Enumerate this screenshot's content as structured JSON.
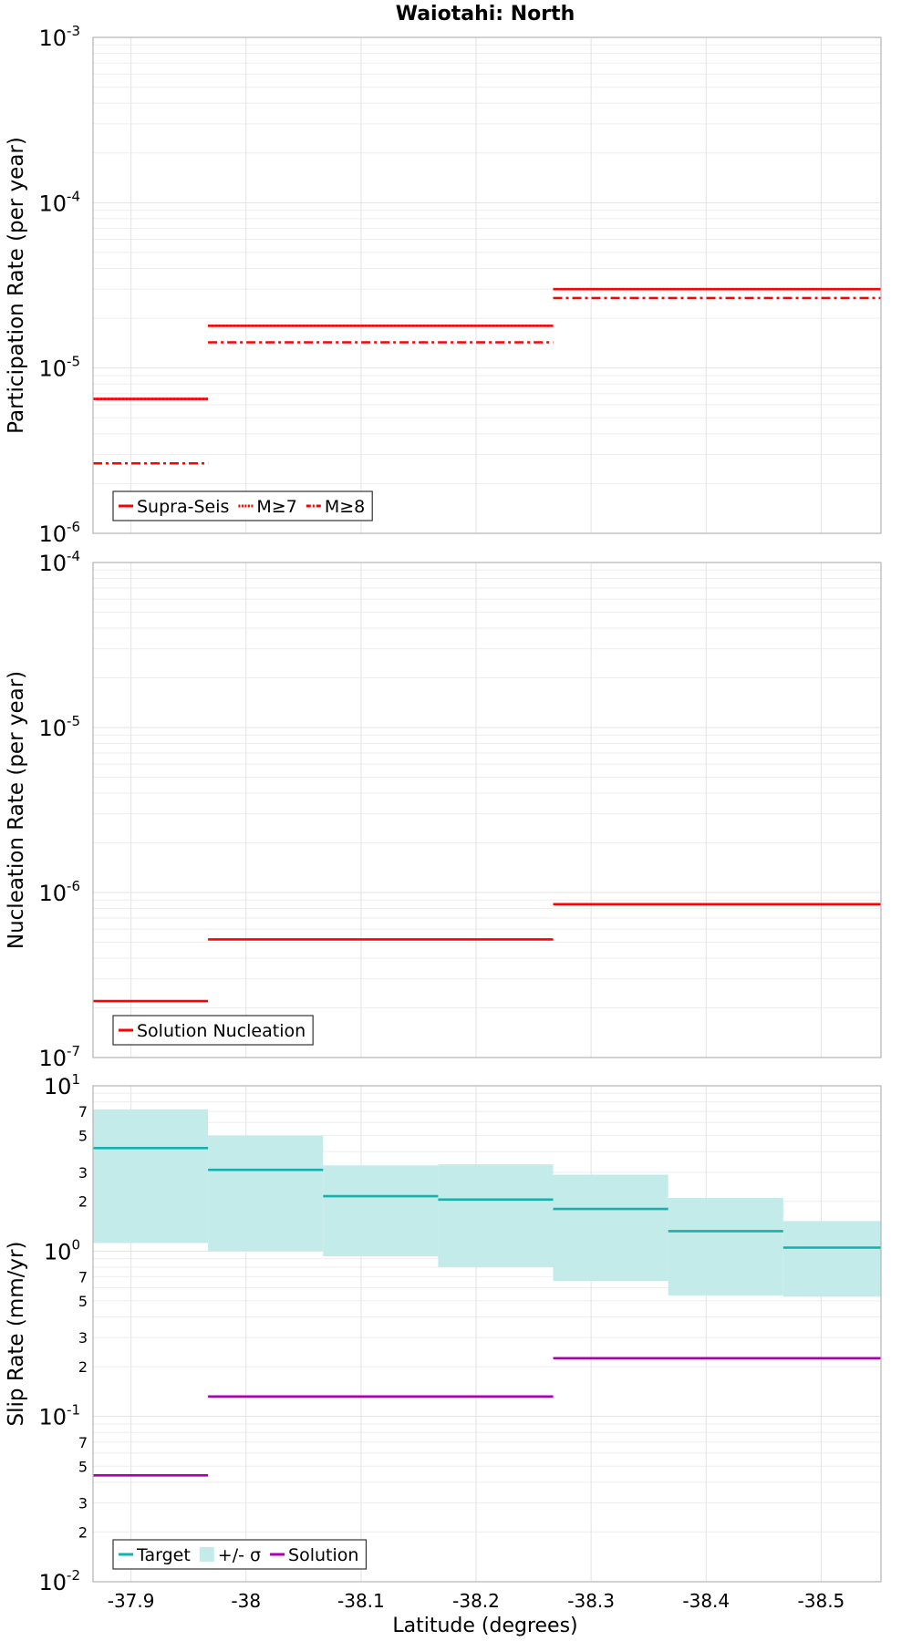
{
  "chart_data": [
    {
      "id": "participation",
      "type": "line",
      "title": "Waiotahi: North",
      "xlabel": "",
      "ylabel": "Participation Rate (per year)",
      "xlim": [
        -37.867,
        -38.552
      ],
      "ylim": [
        1e-06,
        0.001
      ],
      "yscale": "log",
      "grid": true,
      "x_ticks": [
        "-37.9",
        "-38",
        "-38.1",
        "-38.2",
        "-38.3",
        "-38.4",
        "-38.5"
      ],
      "x_tick_values": [
        -37.9,
        -38.0,
        -38.1,
        -38.2,
        -38.3,
        -38.4,
        -38.5
      ],
      "y_ticks": [
        {
          "base": "10",
          "exp": "-3",
          "value": 0.001
        },
        {
          "base": "10",
          "exp": "-4",
          "value": 0.0001
        },
        {
          "base": "10",
          "exp": "-5",
          "value": 1e-05
        },
        {
          "base": "10",
          "exp": "-6",
          "value": 1e-06
        }
      ],
      "legend": {
        "position": "bottom-left",
        "entries": [
          "Supra-Seis",
          "M≥7",
          "M≥8"
        ]
      },
      "series": [
        {
          "name": "Supra-Seis",
          "color": "#ff0000",
          "dash": "solid",
          "segments": [
            {
              "x0": -37.867,
              "x1": -37.967,
              "y": 6.5e-06
            },
            {
              "x0": -37.967,
              "x1": -38.267,
              "y": 1.8e-05
            },
            {
              "x0": -38.267,
              "x1": -38.552,
              "y": 3e-05
            }
          ]
        },
        {
          "name": "M≥7",
          "color": "#ff0000",
          "dash": "dotted",
          "segments": [
            {
              "x0": -37.867,
              "x1": -37.967,
              "y": 6.5e-06
            },
            {
              "x0": -37.967,
              "x1": -38.267,
              "y": 1.8e-05
            },
            {
              "x0": -38.267,
              "x1": -38.552,
              "y": 3e-05
            }
          ]
        },
        {
          "name": "M≥8",
          "color": "#ff0000",
          "dash": "dashdot",
          "segments": [
            {
              "x0": -37.867,
              "x1": -37.967,
              "y": 2.65e-06
            },
            {
              "x0": -37.967,
              "x1": -38.267,
              "y": 1.43e-05
            },
            {
              "x0": -38.267,
              "x1": -38.552,
              "y": 2.65e-05
            }
          ]
        }
      ]
    },
    {
      "id": "nucleation",
      "type": "line",
      "title": "",
      "xlabel": "",
      "ylabel": "Nucleation Rate (per year)",
      "xlim": [
        -37.867,
        -38.552
      ],
      "ylim": [
        1e-07,
        0.0001
      ],
      "yscale": "log",
      "grid": true,
      "x_ticks": [
        "-37.9",
        "-38",
        "-38.1",
        "-38.2",
        "-38.3",
        "-38.4",
        "-38.5"
      ],
      "x_tick_values": [
        -37.9,
        -38.0,
        -38.1,
        -38.2,
        -38.3,
        -38.4,
        -38.5
      ],
      "y_ticks": [
        {
          "base": "10",
          "exp": "-4",
          "value": 0.0001
        },
        {
          "base": "10",
          "exp": "-5",
          "value": 1e-05
        },
        {
          "base": "10",
          "exp": "-6",
          "value": 1e-06
        },
        {
          "base": "10",
          "exp": "-7",
          "value": 1e-07
        }
      ],
      "legend": {
        "position": "bottom-left",
        "entries": [
          "Solution Nucleation"
        ]
      },
      "series": [
        {
          "name": "Solution Nucleation",
          "color": "#ff0000",
          "dash": "solid",
          "segments": [
            {
              "x0": -37.867,
              "x1": -37.967,
              "y": 2.2e-07
            },
            {
              "x0": -37.967,
              "x1": -38.267,
              "y": 5.2e-07
            },
            {
              "x0": -38.267,
              "x1": -38.552,
              "y": 8.5e-07
            }
          ]
        }
      ]
    },
    {
      "id": "slip",
      "type": "line",
      "title": "",
      "xlabel": "Latitude (degrees)",
      "ylabel": "Slip Rate (mm/yr)",
      "xlim": [
        -37.867,
        -38.552
      ],
      "ylim": [
        0.01,
        10
      ],
      "yscale": "log",
      "grid": true,
      "x_ticks": [
        "-37.9",
        "-38",
        "-38.1",
        "-38.2",
        "-38.3",
        "-38.4",
        "-38.5"
      ],
      "x_tick_values": [
        -37.9,
        -38.0,
        -38.1,
        -38.2,
        -38.3,
        -38.4,
        -38.5
      ],
      "y_ticks": [
        {
          "base": "10",
          "exp": "1",
          "value": 10
        },
        {
          "base": "10",
          "exp": "0",
          "value": 1
        },
        {
          "base": "10",
          "exp": "-1",
          "value": 0.1
        },
        {
          "base": "10",
          "exp": "-2",
          "value": 0.01
        }
      ],
      "y_minor_labels": [
        {
          "label": "7",
          "value": 7
        },
        {
          "label": "5",
          "value": 5
        },
        {
          "label": "3",
          "value": 3
        },
        {
          "label": "2",
          "value": 2
        },
        {
          "label": "7",
          "value": 0.7
        },
        {
          "label": "5",
          "value": 0.5
        },
        {
          "label": "3",
          "value": 0.3
        },
        {
          "label": "2",
          "value": 0.2
        },
        {
          "label": "7",
          "value": 0.07
        },
        {
          "label": "5",
          "value": 0.05
        },
        {
          "label": "3",
          "value": 0.03
        },
        {
          "label": "2",
          "value": 0.02
        }
      ],
      "legend": {
        "position": "bottom-left",
        "entries": [
          "Target",
          "+/- σ",
          "Solution"
        ]
      },
      "bands": [
        {
          "name": "+/- σ",
          "color": "#c2ebea",
          "segments": [
            {
              "x0": -37.867,
              "x1": -37.967,
              "lo": 1.12,
              "hi": 7.2
            },
            {
              "x0": -37.967,
              "x1": -38.067,
              "lo": 1.0,
              "hi": 5.0
            },
            {
              "x0": -38.067,
              "x1": -38.167,
              "lo": 0.93,
              "hi": 3.3
            },
            {
              "x0": -38.167,
              "x1": -38.267,
              "lo": 0.8,
              "hi": 3.35
            },
            {
              "x0": -38.267,
              "x1": -38.367,
              "lo": 0.66,
              "hi": 2.9
            },
            {
              "x0": -38.367,
              "x1": -38.467,
              "lo": 0.54,
              "hi": 2.1
            },
            {
              "x0": -38.467,
              "x1": -38.552,
              "lo": 0.53,
              "hi": 1.52
            }
          ]
        }
      ],
      "series": [
        {
          "name": "Target",
          "color": "#16b0ad",
          "dash": "solid",
          "segments": [
            {
              "x0": -37.867,
              "x1": -37.967,
              "y": 4.2
            },
            {
              "x0": -37.967,
              "x1": -38.067,
              "y": 3.1
            },
            {
              "x0": -38.067,
              "x1": -38.167,
              "y": 2.15
            },
            {
              "x0": -38.167,
              "x1": -38.267,
              "y": 2.05
            },
            {
              "x0": -38.267,
              "x1": -38.367,
              "y": 1.8
            },
            {
              "x0": -38.367,
              "x1": -38.467,
              "y": 1.32
            },
            {
              "x0": -38.467,
              "x1": -38.552,
              "y": 1.05
            }
          ]
        },
        {
          "name": "Solution",
          "color": "#aa00b3",
          "dash": "solid",
          "segments": [
            {
              "x0": -37.867,
              "x1": -37.967,
              "y": 0.044
            },
            {
              "x0": -37.967,
              "x1": -38.267,
              "y": 0.132
            },
            {
              "x0": -38.267,
              "x1": -38.552,
              "y": 0.225
            }
          ]
        }
      ]
    }
  ]
}
